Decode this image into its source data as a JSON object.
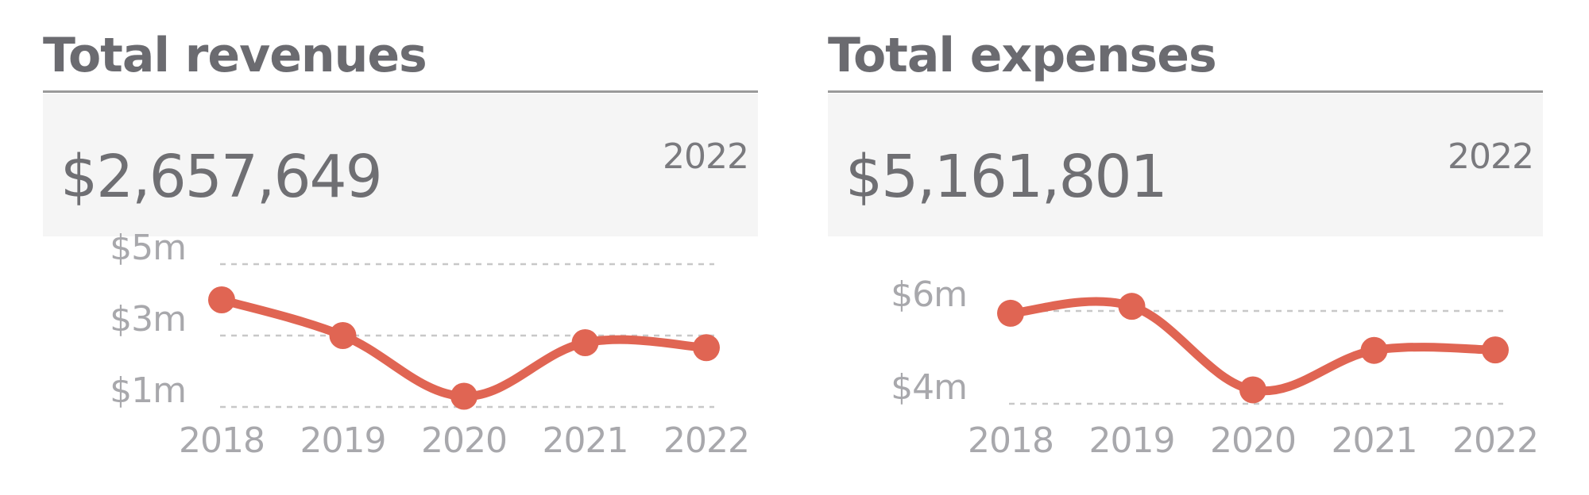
{
  "panels": [
    {
      "title": "Total revenues",
      "kpi_value": "$2,657,649",
      "kpi_year": "2022"
    },
    {
      "title": "Total expenses",
      "kpi_value": "$5,161,801",
      "kpi_year": "2022"
    }
  ],
  "colors": {
    "line": "#e06553",
    "title": "#6b6b70",
    "axis_text": "#a8a8ac",
    "grid": "#c8c8c8",
    "kpi_background": "#f5f5f5"
  },
  "chart_data": [
    {
      "type": "line",
      "title": "",
      "xlabel": "",
      "ylabel": "",
      "categories": [
        "2018",
        "2019",
        "2020",
        "2021",
        "2022"
      ],
      "series": [
        {
          "values": [
            4.0,
            3.0,
            1.3,
            2.8,
            2.66
          ]
        }
      ],
      "yticks": [
        1,
        3,
        5
      ],
      "ytick_labels": [
        "$1m",
        "$3m",
        "$5m"
      ],
      "ylim": [
        1,
        5
      ],
      "grid": true,
      "legend": "none"
    },
    {
      "type": "line",
      "title": "",
      "xlabel": "",
      "ylabel": "",
      "categories": [
        "2018",
        "2019",
        "2020",
        "2021",
        "2022"
      ],
      "series": [
        {
          "values": [
            5.95,
            6.1,
            4.3,
            5.15,
            5.16
          ]
        }
      ],
      "yticks": [
        4,
        6
      ],
      "ytick_labels": [
        "$4m",
        "$6m"
      ],
      "ylim": [
        4,
        6
      ],
      "grid": true,
      "legend": "none"
    }
  ]
}
